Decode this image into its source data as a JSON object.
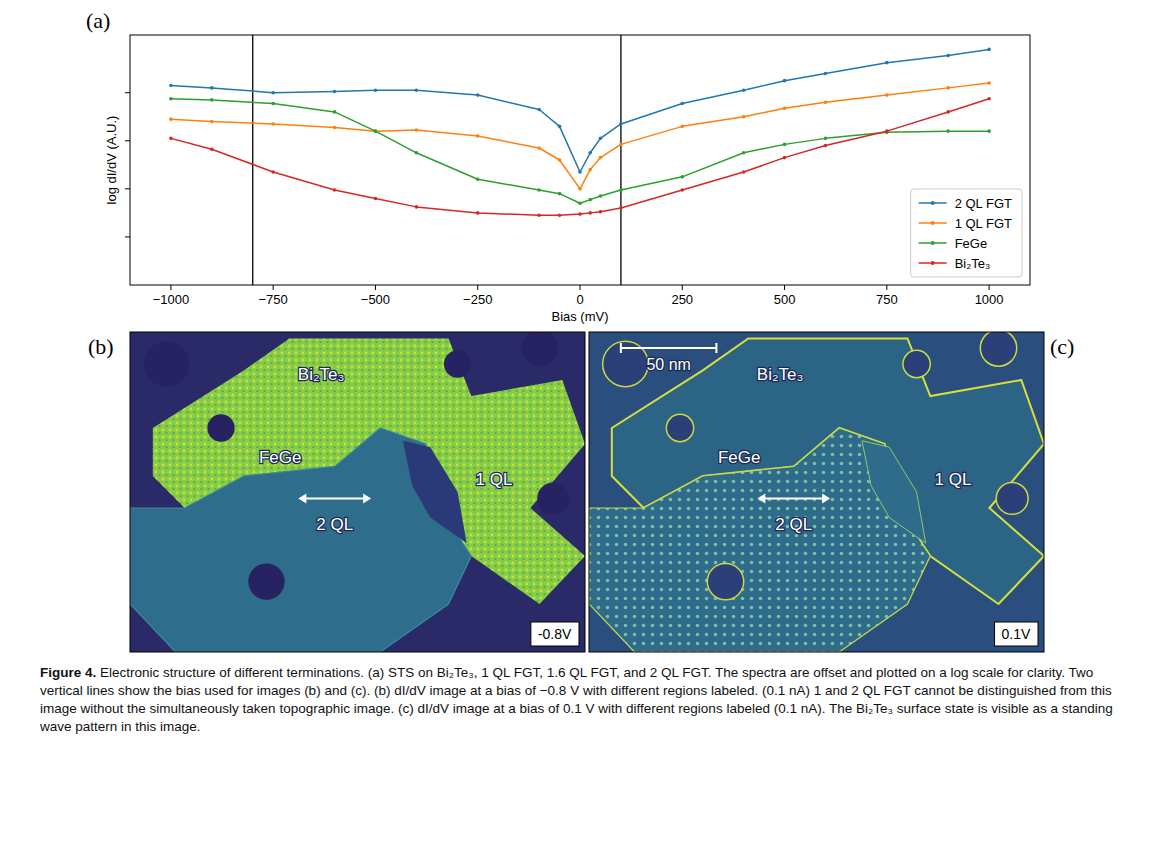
{
  "chart_data": {
    "type": "line",
    "panel_label": "(a)",
    "x_label": "Bias (mV)",
    "y_label": "log dI/dV (A.U.)",
    "x": [
      -1000,
      -900,
      -750,
      -600,
      -500,
      -400,
      -250,
      -100,
      -50,
      0,
      25,
      50,
      100,
      250,
      400,
      500,
      600,
      750,
      900,
      1000
    ],
    "series": [
      {
        "name": "2 QL FGT",
        "color": "#1f77b4",
        "values": [
          8.3,
          8.2,
          8.0,
          8.05,
          8.1,
          8.1,
          7.9,
          7.3,
          6.6,
          4.7,
          5.5,
          6.1,
          6.7,
          7.55,
          8.1,
          8.5,
          8.8,
          9.25,
          9.55,
          9.8
        ]
      },
      {
        "name": "1 QL FGT",
        "color": "#ff7f0e",
        "values": [
          6.9,
          6.8,
          6.7,
          6.55,
          6.4,
          6.45,
          6.2,
          5.7,
          5.2,
          4.0,
          4.8,
          5.3,
          5.85,
          6.6,
          7.0,
          7.35,
          7.6,
          7.9,
          8.2,
          8.4
        ]
      },
      {
        "name": "FeGe",
        "color": "#2ca02c",
        "values": [
          7.75,
          7.7,
          7.55,
          7.2,
          6.4,
          5.5,
          4.4,
          3.95,
          3.8,
          3.4,
          3.55,
          3.7,
          3.95,
          4.5,
          5.5,
          5.85,
          6.1,
          6.35,
          6.4,
          6.4
        ]
      },
      {
        "name": "Bi₂Te₃",
        "color": "#d62728",
        "values": [
          6.1,
          5.65,
          4.7,
          3.95,
          3.6,
          3.25,
          3.0,
          2.9,
          2.9,
          2.95,
          3.0,
          3.05,
          3.2,
          3.95,
          4.7,
          5.3,
          5.8,
          6.4,
          7.2,
          7.75
        ]
      }
    ],
    "xlim": [
      -1100,
      1100
    ],
    "xticks": [
      {
        "value": -1000,
        "label": "−1000"
      },
      {
        "value": -750,
        "label": "−750"
      },
      {
        "value": -500,
        "label": "−500"
      },
      {
        "value": -250,
        "label": "−250"
      },
      0,
      250,
      500,
      750,
      1000
    ],
    "ylim": [
      0,
      10.4
    ],
    "yticks": [
      2,
      4,
      6,
      8
    ],
    "tick_labels": "x",
    "legend": "lower right",
    "marker": "point",
    "vertical_lines": [
      -800,
      100
    ]
  },
  "images": [
    {
      "panel_label": "(b)",
      "bias_label": "-0.8V",
      "regions": [
        "Bi₂Te₃",
        "FeGe",
        "1 QL",
        "2 QL"
      ]
    },
    {
      "panel_label": "(c)",
      "bias_label": "0.1V",
      "scale_bar": "50 nm",
      "regions": [
        "Bi₂Te₃",
        "FeGe",
        "1 QL",
        "2 QL"
      ]
    }
  ],
  "caption": {
    "label": "Figure 4.",
    "text": "Electronic structure of different terminations. (a) STS on Bi₂Te₃, 1 QL FGT, 1.6 QL FGT, and 2 QL FGT. The spectra are offset and plotted on a log scale for clarity. Two vertical lines show the bias used for images (b) and (c). (b) dI/dV image at a bias of −0.8 V with different regions labeled. (0.1 nA) 1 and 2 QL FGT cannot be distinguished from this image without the simultaneously taken topographic image. (c) dI/dV image at a bias of 0.1 V with different regions labeled (0.1 nA). The Bi₂Te₃ surface state is visible as a standing wave pattern in this image."
  }
}
